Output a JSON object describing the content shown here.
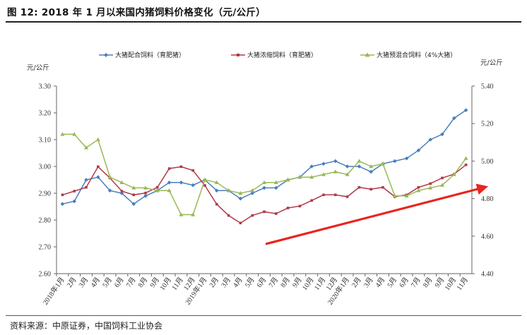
{
  "header": {
    "figure_title": "图 12:  2018 年 1 月以来国内猪饲料价格变化（元/公斤）"
  },
  "footer": {
    "source": "资料来源：中原证券，中国饲料工业协会"
  },
  "colors": {
    "series1": "#4a7ebb",
    "series2": "#b03a48",
    "series3": "#98b954",
    "arrow": "#e8251f"
  },
  "chart_data": {
    "type": "line",
    "left_axis_unit": "元/公斤",
    "right_axis_unit": "元/公斤",
    "ylim_left": [
      2.6,
      3.3
    ],
    "ylim_right": [
      4.4,
      5.4
    ],
    "left_ticks": [
      "2.60",
      "2.70",
      "2.80",
      "2.90",
      "3.00",
      "3.10",
      "3.20",
      "3.30"
    ],
    "right_ticks": [
      "4.40",
      "4.60",
      "4.80",
      "5.00",
      "5.20",
      "5.40"
    ],
    "grid": false,
    "legend_position": "top",
    "categories": [
      "2018年1月",
      "2月",
      "3月",
      "4月",
      "5月",
      "6月",
      "7月",
      "8月",
      "9月",
      "10月",
      "11月",
      "12月",
      "2019年1月",
      "2月",
      "3月",
      "4月",
      "5月",
      "6月",
      "7月",
      "8月",
      "9月",
      "10月",
      "11月",
      "12月",
      "2020年1月",
      "2月",
      "3月",
      "4月",
      "5月",
      "6月",
      "7月",
      "8月",
      "9月",
      "10月",
      "11月"
    ],
    "series": [
      {
        "name": "大猪配合饲料（育肥猪）",
        "axis": "left",
        "values": [
          2.86,
          2.87,
          2.95,
          2.96,
          2.91,
          2.9,
          2.86,
          2.89,
          2.91,
          2.94,
          2.94,
          2.93,
          2.95,
          2.91,
          2.91,
          2.88,
          2.9,
          2.92,
          2.92,
          2.95,
          2.96,
          3.0,
          3.01,
          3.02,
          3.0,
          3.0,
          2.98,
          3.01,
          3.02,
          3.03,
          3.06,
          3.1,
          3.12,
          3.18,
          3.21
        ]
      },
      {
        "name": "大猪浓缩饲料（育肥猪）",
        "axis": "right",
        "values": [
          4.82,
          4.84,
          4.86,
          4.97,
          4.91,
          4.84,
          4.82,
          4.83,
          4.86,
          4.96,
          4.97,
          4.95,
          4.87,
          4.77,
          4.71,
          4.67,
          4.71,
          4.73,
          4.72,
          4.75,
          4.76,
          4.79,
          4.82,
          4.82,
          4.81,
          4.86,
          4.85,
          4.86,
          4.81,
          4.82,
          4.86,
          4.88,
          4.91,
          4.93,
          4.98
        ]
      },
      {
        "name": "大猪预混合饲料（4%大猪）",
        "axis": "left",
        "values": [
          3.12,
          3.12,
          3.07,
          3.1,
          2.96,
          2.94,
          2.92,
          2.92,
          2.91,
          2.91,
          2.82,
          2.82,
          2.95,
          2.94,
          2.91,
          2.9,
          2.91,
          2.94,
          2.94,
          2.95,
          2.96,
          2.96,
          2.97,
          2.98,
          2.97,
          3.02,
          3.0,
          3.01,
          2.89,
          2.89,
          2.91,
          2.92,
          2.93,
          2.97,
          3.03
        ]
      }
    ],
    "annotation": "upward-trend-arrow"
  }
}
